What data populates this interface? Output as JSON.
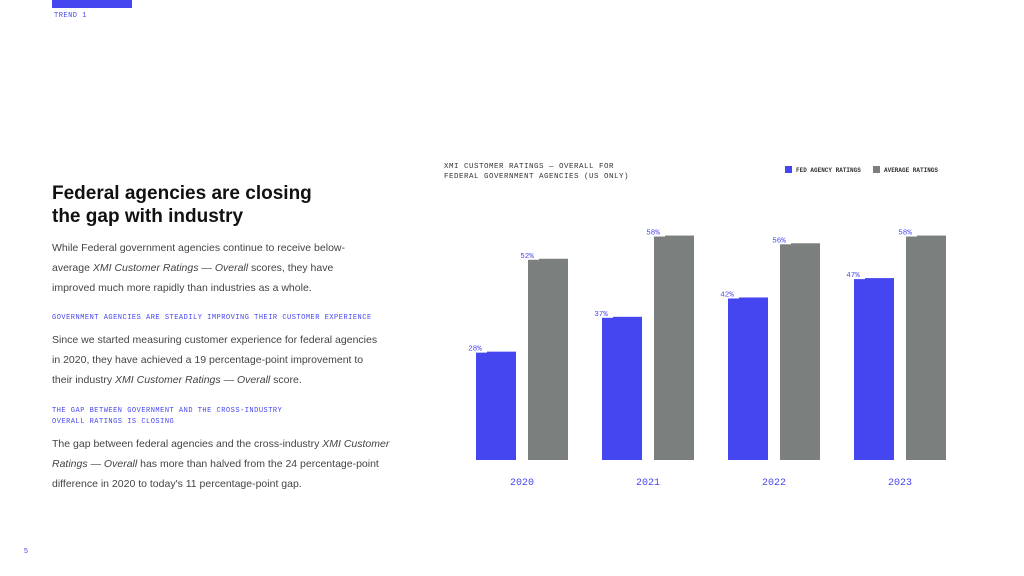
{
  "trend_label": "TREND 1",
  "title": "Federal agencies are closing the gap with industry",
  "intro": [
    "While Federal government agencies continue to receive below-average ",
    "XMI Customer Ratings — Overall",
    " scores, they have improved much more rapidly than industries as a whole."
  ],
  "sections": [
    {
      "heading": "GOVERNMENT AGENCIES ARE STEADILY IMPROVING THEIR CUSTOMER EXPERIENCE",
      "body": [
        "Since we started measuring customer experience for federal agencies in 2020, they have achieved a 19 percentage-point improvement to their industry ",
        "XMI Customer Ratings — Overall",
        " score."
      ]
    },
    {
      "heading": "THE GAP BETWEEN GOVERNMENT AND THE CROSS-INDUSTRY OVERALL RATINGS IS CLOSING",
      "body": [
        "The gap between federal agencies and the cross-industry ",
        "XMI Customer Ratings — Overall",
        " has more than halved from the 24 percentage-point difference in 2020 to today's 11 percentage-point gap."
      ]
    }
  ],
  "page_number": "5",
  "chart_data": {
    "type": "bar",
    "title": "XMI CUSTOMER RATINGS — OVERALL FOR FEDERAL GOVERNMENT AGENCIES (US ONLY)",
    "categories": [
      "2020",
      "2021",
      "2022",
      "2023"
    ],
    "series": [
      {
        "name": "FED AGENCY RATINGS",
        "color": "#4646f0",
        "values": [
          28,
          37,
          42,
          47
        ],
        "value_labels": [
          "28%",
          "37%",
          "42%",
          "47%"
        ]
      },
      {
        "name": "AVERAGE RATINGS",
        "color": "#7b7f7d",
        "values": [
          52,
          58,
          56,
          58
        ],
        "value_labels": [
          "52%",
          "58%",
          "56%",
          "58%"
        ]
      }
    ],
    "legend": "top-right"
  }
}
